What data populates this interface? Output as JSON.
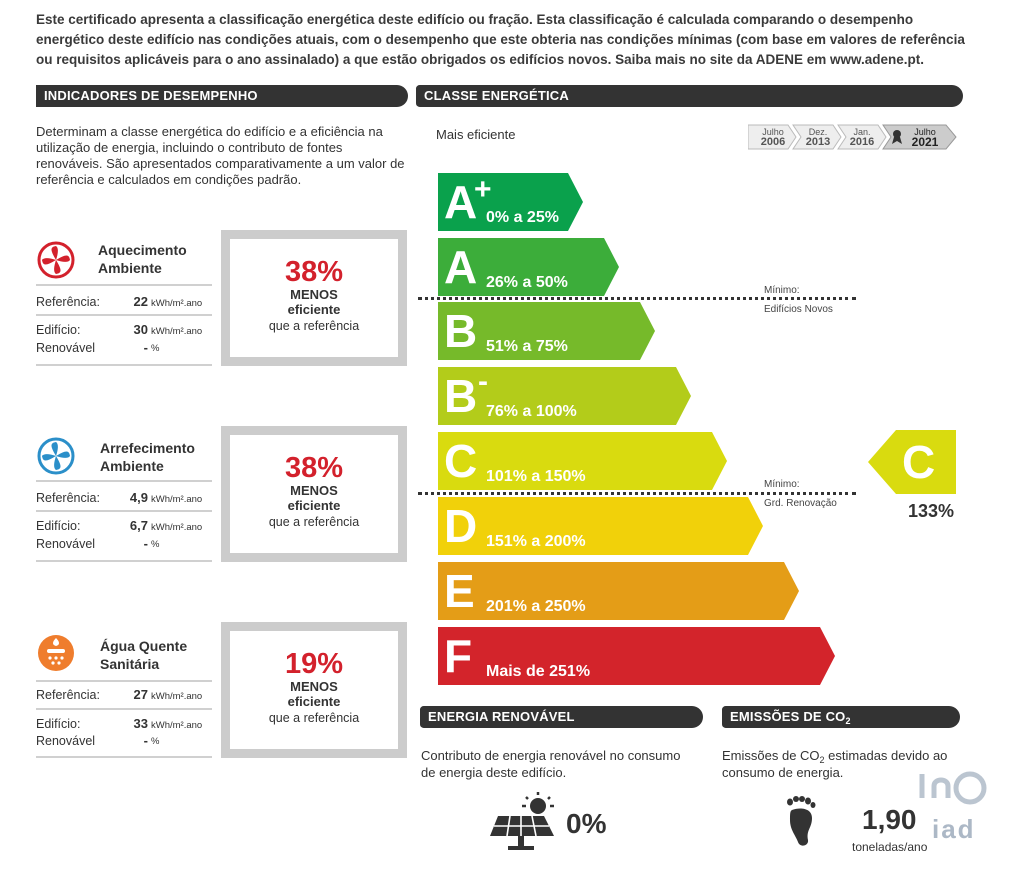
{
  "intro_text": "Este certificado apresenta a classificação energética deste edifício ou fração. Esta classificação é calculada comparando o desempenho energético deste edifício nas condições atuais, com o desempenho que este obteria nas condições mínimas (com base em valores de referência ou requisitos aplicáveis para o ano assinalado) a que estão obrigados os edifícios novos. Saiba mais no site da ADENE em www.adene.pt.",
  "indicators": {
    "heading": "INDICADORES DE DESEMPENHO",
    "description": "Determinam a classe energética do edifício e a eficiência na utilização de energia, incluindo o contributo de fontes renováveis. São apresentados comparativamente a um valor de referência e calculados em condições padrão.",
    "labels": {
      "referencia": "Referência:",
      "edificio": "Edifício:",
      "renovavel": "Renovável"
    },
    "items": [
      {
        "icon": "heating-fan-icon",
        "color": "#d3212c",
        "title_line1": "Aquecimento",
        "title_line2": "Ambiente",
        "referencia": "22",
        "edificio": "30",
        "renovavel": "-",
        "unit": "kWh/m².ano",
        "unit_pct": "%",
        "percent": "38%",
        "word1": "MENOS",
        "word2": "eficiente",
        "word3": "que a referência"
      },
      {
        "icon": "cooling-fan-icon",
        "color": "#2b8fc9",
        "title_line1": "Arrefecimento",
        "title_line2": "Ambiente",
        "referencia": "4,9",
        "edificio": "6,7",
        "renovavel": "-",
        "unit": "kWh/m².ano",
        "unit_pct": "%",
        "percent": "38%",
        "word1": "MENOS",
        "word2": "eficiente",
        "word3": "que a referência"
      },
      {
        "icon": "hot-water-icon",
        "color": "#ef7d2d",
        "title_line1": "Água Quente",
        "title_line2": "Sanitária",
        "referencia": "27",
        "edificio": "33",
        "renovavel": "-",
        "unit": "kWh/m².ano",
        "unit_pct": "%",
        "percent": "19%",
        "word1": "MENOS",
        "word2": "eficiente",
        "word3": "que a referência"
      }
    ]
  },
  "energy_class": {
    "heading": "CLASSE ENERGÉTICA",
    "most_efficient": "Mais eficiente",
    "dates": [
      {
        "month": "Julho",
        "year": "2006"
      },
      {
        "month": "Dez.",
        "year": "2013"
      },
      {
        "month": "Jan.",
        "year": "2016"
      },
      {
        "month": "Julho",
        "year": "2021"
      }
    ],
    "classes": [
      {
        "letter": "A",
        "sup": "+",
        "range": "0% a 25%",
        "color": "#0aa14c"
      },
      {
        "letter": "A",
        "sup": "",
        "range": "26% a 50%",
        "color": "#3cad3a"
      },
      {
        "letter": "B",
        "sup": "",
        "range": "51% a 75%",
        "color": "#76ba2a"
      },
      {
        "letter": "B",
        "sup": "-",
        "range": "76% a 100%",
        "color": "#b3cc1a"
      },
      {
        "letter": "C",
        "sup": "",
        "range": "101% a 150%",
        "color": "#d9db0f"
      },
      {
        "letter": "D",
        "sup": "",
        "range": "151% a 200%",
        "color": "#f1d10a"
      },
      {
        "letter": "E",
        "sup": "",
        "range": "201% a 250%",
        "color": "#e49d17"
      },
      {
        "letter": "F",
        "sup": "",
        "range": "Mais de 251%",
        "color": "#d3242b"
      }
    ],
    "minimum_new_l1": "Mínimo:",
    "minimum_new_l2": "Edifícios Novos",
    "minimum_renov_l1": "Mínimo:",
    "minimum_renov_l2": "Grd. Renovação",
    "result_letter": "C",
    "result_color": "#d9db0f",
    "result_percent": "133%"
  },
  "renewable": {
    "heading": "ENERGIA RENOVÁVEL",
    "description_l1": "Contributo de energia renovável no consumo",
    "description_l2": "de energia deste edifício.",
    "value": "0%"
  },
  "emissions": {
    "heading_prefix": "EMISSÕES DE CO",
    "heading_sub": "2",
    "description_l1a": "Emissões de CO",
    "description_l1sub": "2",
    "description_l1b": " estimadas devido ao",
    "description_l2": "consumo de energia.",
    "value": "1,90",
    "unit": "toneladas/ano"
  },
  "watermark": "iad"
}
